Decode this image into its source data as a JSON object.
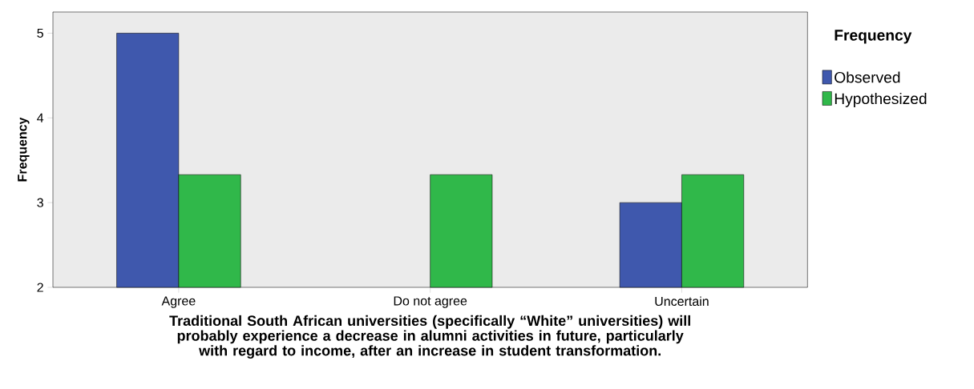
{
  "chart_data": {
    "type": "bar",
    "xlabel": "Traditional South African universities (specifically “White” universities) will probably experience a decrease in alumni activities in future, particularly with regard to income, after an increase in student transformation.",
    "ylabel": "Frequency",
    "legend_title": "Frequency",
    "categories": [
      "Agree",
      "Do not agree",
      "Uncertain"
    ],
    "series": [
      {
        "name": "Observed",
        "color": "#3f58ad",
        "values": [
          5,
          null,
          3
        ]
      },
      {
        "name": "Hypothesized",
        "color": "#30b84a",
        "values": [
          3.33,
          3.33,
          3.33
        ]
      }
    ],
    "ylim": [
      2,
      5.25
    ],
    "yticks": [
      2,
      3,
      4,
      5
    ],
    "grid": false,
    "legend": "right"
  }
}
